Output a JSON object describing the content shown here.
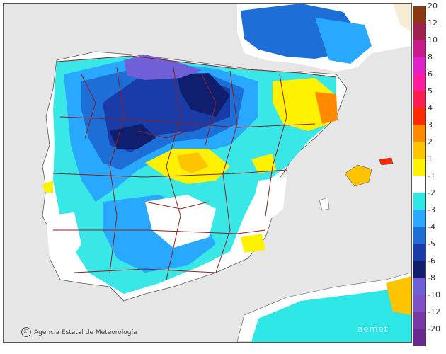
{
  "credit": {
    "logo": "©",
    "text": "Agencia Estatal de Meteorología"
  },
  "watermark": "aemet",
  "legend": {
    "entries": [
      {
        "label": "20",
        "color": "#8b3a10"
      },
      {
        "label": "12",
        "color": "#a02050"
      },
      {
        "label": "10",
        "color": "#c81c8c"
      },
      {
        "label": "8",
        "color": "#e020c8"
      },
      {
        "label": "6",
        "color": "#ff1aa0"
      },
      {
        "label": "5",
        "color": "#ff1e50"
      },
      {
        "label": "4",
        "color": "#ff2a00"
      },
      {
        "label": "3",
        "color": "#ff8a00"
      },
      {
        "label": "2",
        "color": "#ffc400"
      },
      {
        "label": "1",
        "color": "#fff200"
      },
      {
        "label": "-1",
        "color": "#ffffff"
      },
      {
        "label": "-2",
        "color": "#2ee6e6"
      },
      {
        "label": "-3",
        "color": "#28a8ff"
      },
      {
        "label": "-4",
        "color": "#1e6ed8"
      },
      {
        "label": "-5",
        "color": "#1a3ca8"
      },
      {
        "label": "-6",
        "color": "#101e6e"
      },
      {
        "label": "-8",
        "color": "#7060d8"
      },
      {
        "label": "-10",
        "color": "#8050c8"
      },
      {
        "label": "-12",
        "color": "#7838a8"
      },
      {
        "label": "-20",
        "color": "#6a2890"
      }
    ]
  },
  "colors": {
    "sea": "#e6e6e6",
    "land_base": "#ffffff",
    "border": "#8b2020",
    "coast": "#555555"
  }
}
